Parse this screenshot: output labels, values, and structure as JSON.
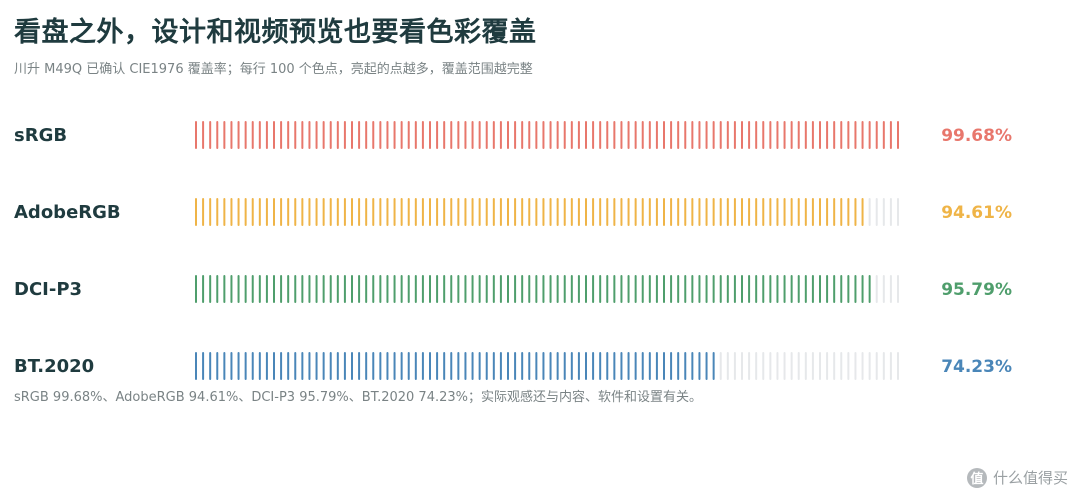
{
  "header": {
    "title": "看盘之外，设计和视频预览也要看色彩覆盖",
    "subtitle": "川升 M49Q 已确认 CIE1976 覆盖率；每行 100 个色点，亮起的点越多，覆盖范围越完整"
  },
  "chart_data": {
    "type": "bar",
    "categories": [
      "sRGB",
      "AdobeRGB",
      "DCI-P3",
      "BT.2020"
    ],
    "values": [
      99.68,
      94.61,
      95.79,
      74.23
    ],
    "value_labels": [
      "99.68%",
      "94.61%",
      "95.79%",
      "74.23%"
    ],
    "colors": [
      "#e8776c",
      "#efb447",
      "#4f9e6c",
      "#4a86b8"
    ],
    "inactive_color": "#e6e8ea",
    "dots_per_row": 100,
    "ylim": [
      0,
      100
    ],
    "title": "看盘之外，设计和视频预览也要看色彩覆盖"
  },
  "footnote": "sRGB 99.68%、AdobeRGB 94.61%、DCI-P3 95.79%、BT.2020 74.23%；实际观感还与内容、软件和设置有关。",
  "watermark": {
    "icon": "值",
    "text": "什么值得买"
  }
}
